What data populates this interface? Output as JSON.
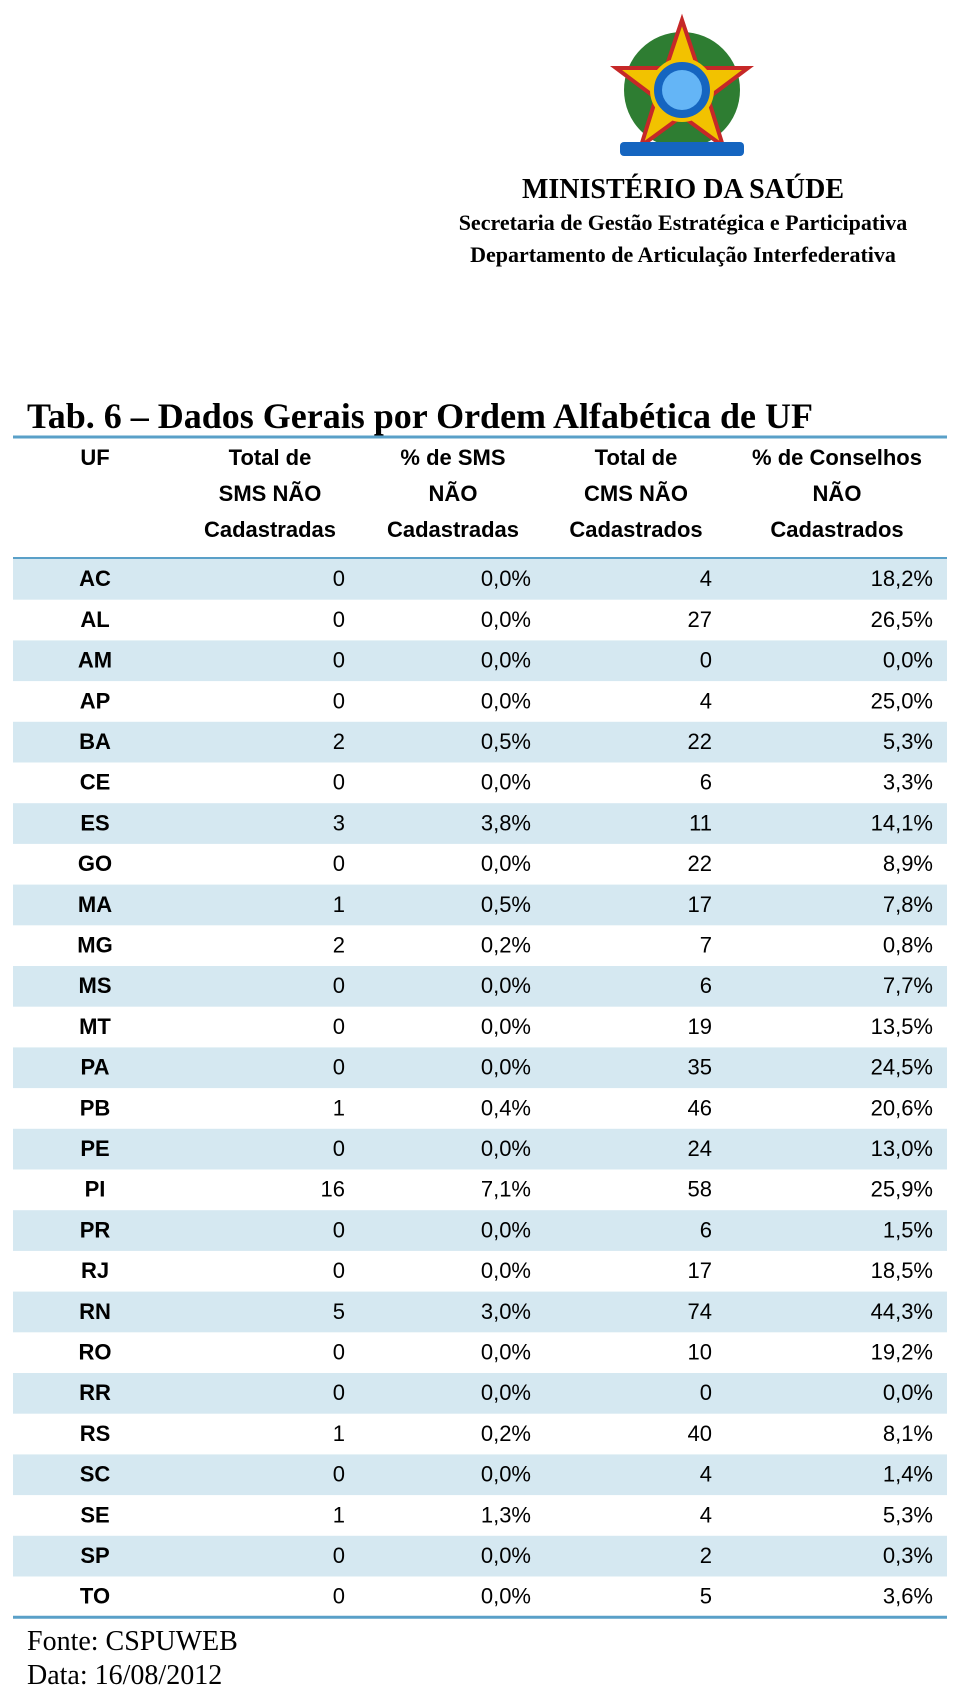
{
  "header": {
    "ministry": "MINISTÉRIO DA SAÚDE",
    "secretariat": "Secretaria de Gestão Estratégica e Participativa",
    "department": "Departamento de Articulação Interfederativa"
  },
  "table": {
    "title": "Tab. 6 – Dados Gerais por Ordem Alfabética de UF",
    "columns": [
      [
        "UF"
      ],
      [
        "Total de",
        "SMS NÃO",
        "Cadastradas"
      ],
      [
        "% de SMS",
        "NÃO",
        "Cadastradas"
      ],
      [
        "Total de",
        "CMS NÃO",
        "Cadastrados"
      ],
      [
        "% de Conselhos",
        "NÃO",
        "Cadastrados"
      ]
    ],
    "rows": [
      [
        "AC",
        0,
        "0,0%",
        4,
        "18,2%"
      ],
      [
        "AL",
        0,
        "0,0%",
        27,
        "26,5%"
      ],
      [
        "AM",
        0,
        "0,0%",
        0,
        "0,0%"
      ],
      [
        "AP",
        0,
        "0,0%",
        4,
        "25,0%"
      ],
      [
        "BA",
        2,
        "0,5%",
        22,
        "5,3%"
      ],
      [
        "CE",
        0,
        "0,0%",
        6,
        "3,3%"
      ],
      [
        "ES",
        3,
        "3,8%",
        11,
        "14,1%"
      ],
      [
        "GO",
        0,
        "0,0%",
        22,
        "8,9%"
      ],
      [
        "MA",
        1,
        "0,5%",
        17,
        "7,8%"
      ],
      [
        "MG",
        2,
        "0,2%",
        7,
        "0,8%"
      ],
      [
        "MS",
        0,
        "0,0%",
        6,
        "7,7%"
      ],
      [
        "MT",
        0,
        "0,0%",
        19,
        "13,5%"
      ],
      [
        "PA",
        0,
        "0,0%",
        35,
        "24,5%"
      ],
      [
        "PB",
        1,
        "0,4%",
        46,
        "20,6%"
      ],
      [
        "PE",
        0,
        "0,0%",
        24,
        "13,0%"
      ],
      [
        "PI",
        16,
        "7,1%",
        58,
        "25,9%"
      ],
      [
        "PR",
        0,
        "0,0%",
        6,
        "1,5%"
      ],
      [
        "RJ",
        0,
        "0,0%",
        17,
        "18,5%"
      ],
      [
        "RN",
        5,
        "3,0%",
        74,
        "44,3%"
      ],
      [
        "RO",
        0,
        "0,0%",
        10,
        "19,2%"
      ],
      [
        "RR",
        0,
        "0,0%",
        0,
        "0,0%"
      ],
      [
        "RS",
        1,
        "0,2%",
        40,
        "8,1%"
      ],
      [
        "SC",
        0,
        "0,0%",
        4,
        "1,4%"
      ],
      [
        "SE",
        1,
        "1,3%",
        4,
        "5,3%"
      ],
      [
        "SP",
        0,
        "0,0%",
        2,
        "0,3%"
      ],
      [
        "TO",
        0,
        "0,0%",
        5,
        "3,6%"
      ]
    ]
  },
  "footer": {
    "source": "Fonte: CSPUWEB",
    "date": "Data: 16/08/2012"
  }
}
